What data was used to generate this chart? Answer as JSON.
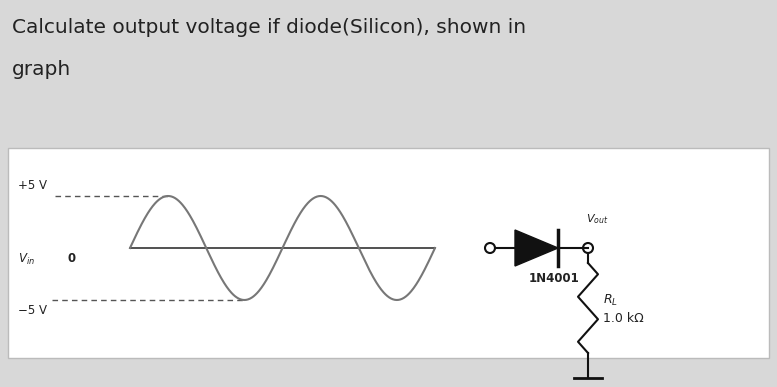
{
  "title_line1": "Calculate output voltage if diode(Silicon), shown in",
  "title_line2": "graph",
  "title_fontsize": 14.5,
  "title_color": "#222222",
  "bg_color": "#d8d8d8",
  "panel_bg": "#ffffff",
  "diode_label": "1N4001",
  "vout_label": "V_{out}",
  "rl_label": "R_L",
  "rl_value": "1.0 kΩ",
  "sine_color": "#777777",
  "circuit_color": "#111111"
}
